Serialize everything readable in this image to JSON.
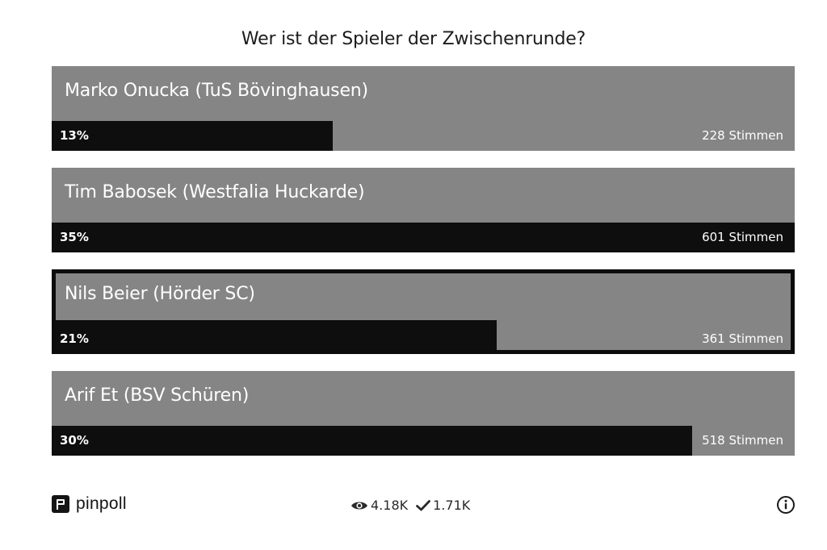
{
  "poll": {
    "question": "Wer ist der Spieler der Zwischenrunde?",
    "options": [
      {
        "name": "Marko Onucka (TuS Bövinghausen)",
        "percent_label": "13%",
        "percent": 0.378,
        "votes_label": "228 Stimmen",
        "selected": false
      },
      {
        "name": "Tim Babosek (Westfalia Huckarde)",
        "percent_label": "35%",
        "percent": 1.0,
        "votes_label": "601 Stimmen",
        "selected": false
      },
      {
        "name": "Nils Beier (Hörder SC)",
        "percent_label": "21%",
        "percent": 0.6,
        "votes_label": "361 Stimmen",
        "selected": true
      },
      {
        "name": "Arif Et (BSV Schüren)",
        "percent_label": "30%",
        "percent": 0.862,
        "votes_label": "518 Stimmen",
        "selected": false
      }
    ]
  },
  "footer": {
    "brand": "pinpoll",
    "views": "4.18K",
    "votes": "1.71K",
    "icons": {
      "brand": "pinpoll-logo-icon",
      "views": "eye-icon",
      "votes": "checkmark-icon",
      "info": "info-icon"
    }
  },
  "colors": {
    "option_bg": "#858585",
    "bar_fill": "#0e0e0e",
    "selected_border": "#0c0c0c"
  }
}
